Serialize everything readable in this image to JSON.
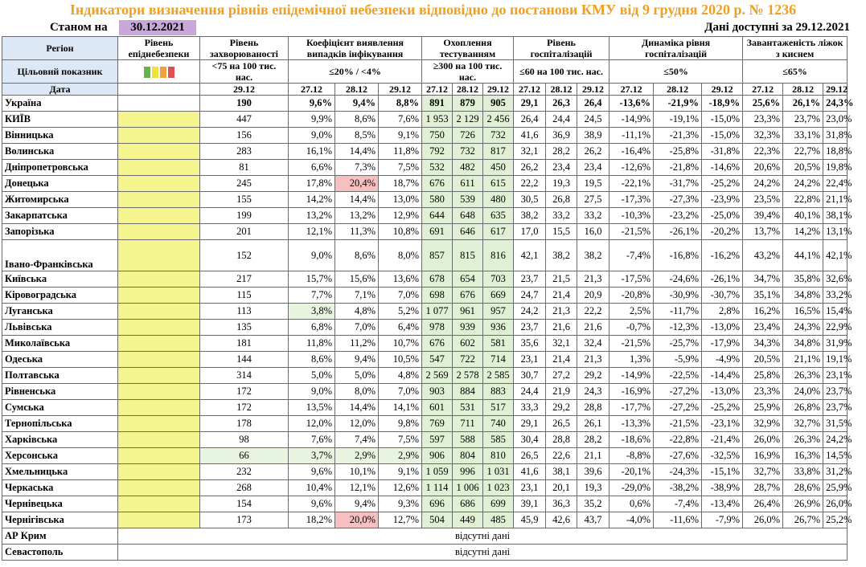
{
  "title": "Індикатори визначення рівнів епідемічної небезпеки відповідно до постанови КМУ від 9 грудня 2020 р. № 1236",
  "as_of_label": "Станом на",
  "as_of_date": "30.12.2021",
  "data_available": "Дані доступні за 29.12.2021",
  "header": {
    "region": "Регіон",
    "target": "Цільовий показник",
    "date": "Дата",
    "col_level": "Рівень епіднебезпеки",
    "col_incidence": "Рівень захворюваності",
    "col_detection": "Коефіцієнт виявлення випадків інфікування",
    "col_testing": "Охоплення тестуванням",
    "col_hosp": "Рівень госпіталізацій",
    "col_dynamics": "Динаміка рівня госпіталізацій",
    "col_beds": "Завантаженість ліжок з киснем",
    "t_incidence": "<75 на 100 тис. нас.",
    "t_detection": "≤20% / <4%",
    "t_testing": "≥300 на 100 тис. нас.",
    "t_hosp": "≤60 на 100 тис. нас.",
    "t_dynamics": "≤50%",
    "t_beds": "≤65%",
    "d_incidence": "29.12",
    "dates": [
      "27.12",
      "28.12",
      "29.12"
    ]
  },
  "swatch_colors": [
    "#6ab04c",
    "#f0e040",
    "#f0a040",
    "#e05050"
  ],
  "ukraine": {
    "name": "Україна",
    "inc": "190",
    "det": [
      "9,6%",
      "9,4%",
      "8,8%"
    ],
    "test": [
      "891",
      "879",
      "905"
    ],
    "hosp": [
      "29,1",
      "26,3",
      "26,4"
    ],
    "dyn": [
      "-13,6%",
      "-21,9%",
      "-18,9%"
    ],
    "beds": [
      "25,6%",
      "26,1%",
      "24,3%"
    ]
  },
  "rows": [
    {
      "name": "КИЇВ",
      "inc": "447",
      "det": [
        "9,9%",
        "8,6%",
        "7,6%"
      ],
      "test": [
        "1 953",
        "2 129",
        "2 456"
      ],
      "hosp": [
        "26,4",
        "24,4",
        "24,5"
      ],
      "dyn": [
        "-14,9%",
        "-19,1%",
        "-15,0%"
      ],
      "beds": [
        "23,3%",
        "23,7%",
        "23,0%"
      ]
    },
    {
      "name": "Вінницька",
      "inc": "156",
      "det": [
        "9,0%",
        "8,5%",
        "9,1%"
      ],
      "test": [
        "750",
        "726",
        "732"
      ],
      "hosp": [
        "41,6",
        "36,9",
        "38,9"
      ],
      "dyn": [
        "-11,1%",
        "-21,3%",
        "-15,0%"
      ],
      "beds": [
        "32,3%",
        "33,1%",
        "31,8%"
      ]
    },
    {
      "name": "Волинська",
      "inc": "283",
      "det": [
        "16,1%",
        "14,4%",
        "11,8%"
      ],
      "test": [
        "792",
        "732",
        "817"
      ],
      "hosp": [
        "32,1",
        "28,2",
        "26,2"
      ],
      "dyn": [
        "-16,4%",
        "-25,8%",
        "-31,8%"
      ],
      "beds": [
        "22,3%",
        "22,7%",
        "18,8%"
      ]
    },
    {
      "name": "Дніпропетровська",
      "inc": "81",
      "det": [
        "6,6%",
        "7,3%",
        "7,5%"
      ],
      "test": [
        "532",
        "482",
        "450"
      ],
      "hosp": [
        "26,2",
        "23,4",
        "23,4"
      ],
      "dyn": [
        "-12,6%",
        "-21,8%",
        "-14,6%"
      ],
      "beds": [
        "20,6%",
        "20,5%",
        "19,8%"
      ]
    },
    {
      "name": "Донецька",
      "inc": "245",
      "det": [
        "17,8%",
        "20,4%",
        "18,7%"
      ],
      "test": [
        "676",
        "611",
        "615"
      ],
      "hosp": [
        "22,2",
        "19,3",
        "19,5"
      ],
      "dyn": [
        "-22,1%",
        "-31,7%",
        "-25,2%"
      ],
      "beds": [
        "24,2%",
        "24,2%",
        "22,4%"
      ]
    },
    {
      "name": "Житомирська",
      "inc": "155",
      "det": [
        "14,2%",
        "14,4%",
        "13,0%"
      ],
      "test": [
        "580",
        "539",
        "480"
      ],
      "hosp": [
        "30,5",
        "26,8",
        "27,5"
      ],
      "dyn": [
        "-17,3%",
        "-27,3%",
        "-23,9%"
      ],
      "beds": [
        "23,5%",
        "22,8%",
        "21,1%"
      ]
    },
    {
      "name": "Закарпатська",
      "inc": "199",
      "det": [
        "13,2%",
        "13,2%",
        "12,9%"
      ],
      "test": [
        "644",
        "648",
        "635"
      ],
      "hosp": [
        "38,2",
        "33,2",
        "33,2"
      ],
      "dyn": [
        "-10,3%",
        "-23,2%",
        "-25,0%"
      ],
      "beds": [
        "39,4%",
        "40,1%",
        "38,1%"
      ]
    },
    {
      "name": "Запорізька",
      "inc": "201",
      "det": [
        "12,1%",
        "11,3%",
        "10,8%"
      ],
      "test": [
        "691",
        "646",
        "617"
      ],
      "hosp": [
        "17,0",
        "15,5",
        "16,0"
      ],
      "dyn": [
        "-21,5%",
        "-26,1%",
        "-20,2%"
      ],
      "beds": [
        "13,7%",
        "14,2%",
        "13,1%"
      ]
    },
    {
      "name": "Івано-Франківська",
      "inc": "152",
      "det": [
        "9,0%",
        "8,6%",
        "8,0%"
      ],
      "test": [
        "857",
        "815",
        "816"
      ],
      "hosp": [
        "42,1",
        "38,2",
        "38,2"
      ],
      "dyn": [
        "-7,4%",
        "-16,8%",
        "-16,2%"
      ],
      "beds": [
        "43,2%",
        "44,1%",
        "42,1%"
      ]
    },
    {
      "name": "Київська",
      "inc": "217",
      "det": [
        "15,7%",
        "15,6%",
        "13,6%"
      ],
      "test": [
        "678",
        "654",
        "703"
      ],
      "hosp": [
        "23,7",
        "21,5",
        "21,3"
      ],
      "dyn": [
        "-17,5%",
        "-24,6%",
        "-26,1%"
      ],
      "beds": [
        "34,7%",
        "35,8%",
        "32,6%"
      ]
    },
    {
      "name": "Кіровоградська",
      "inc": "115",
      "det": [
        "7,7%",
        "7,1%",
        "7,0%"
      ],
      "test": [
        "698",
        "676",
        "669"
      ],
      "hosp": [
        "24,7",
        "21,4",
        "20,9"
      ],
      "dyn": [
        "-20,8%",
        "-30,9%",
        "-30,7%"
      ],
      "beds": [
        "35,1%",
        "34,8%",
        "33,2%"
      ]
    },
    {
      "name": "Луганська",
      "inc": "113",
      "det": [
        "3,8%",
        "4,8%",
        "5,2%"
      ],
      "test": [
        "1 077",
        "961",
        "957"
      ],
      "hosp": [
        "24,2",
        "21,3",
        "22,2"
      ],
      "dyn": [
        "2,5%",
        "-11,7%",
        "2,8%"
      ],
      "beds": [
        "16,2%",
        "16,5%",
        "15,4%"
      ]
    },
    {
      "name": "Львівська",
      "inc": "135",
      "det": [
        "6,8%",
        "7,0%",
        "6,4%"
      ],
      "test": [
        "978",
        "939",
        "936"
      ],
      "hosp": [
        "23,7",
        "21,6",
        "21,6"
      ],
      "dyn": [
        "-0,7%",
        "-12,3%",
        "-13,0%"
      ],
      "beds": [
        "23,4%",
        "24,3%",
        "22,9%"
      ]
    },
    {
      "name": "Миколаївська",
      "inc": "181",
      "det": [
        "11,8%",
        "11,2%",
        "10,7%"
      ],
      "test": [
        "676",
        "602",
        "581"
      ],
      "hosp": [
        "35,6",
        "32,1",
        "32,4"
      ],
      "dyn": [
        "-21,5%",
        "-25,7%",
        "-17,9%"
      ],
      "beds": [
        "34,3%",
        "34,8%",
        "31,9%"
      ]
    },
    {
      "name": "Одеська",
      "inc": "144",
      "det": [
        "8,6%",
        "9,4%",
        "10,5%"
      ],
      "test": [
        "547",
        "722",
        "714"
      ],
      "hosp": [
        "23,1",
        "21,4",
        "21,3"
      ],
      "dyn": [
        "1,3%",
        "-5,9%",
        "-4,9%"
      ],
      "beds": [
        "20,5%",
        "21,1%",
        "19,1%"
      ]
    },
    {
      "name": "Полтавська",
      "inc": "314",
      "det": [
        "5,0%",
        "5,0%",
        "4,8%"
      ],
      "test": [
        "2 569",
        "2 578",
        "2 585"
      ],
      "hosp": [
        "30,7",
        "27,2",
        "29,2"
      ],
      "dyn": [
        "-14,9%",
        "-22,5%",
        "-14,4%"
      ],
      "beds": [
        "25,8%",
        "26,3%",
        "23,1%"
      ]
    },
    {
      "name": "Рівненська",
      "inc": "172",
      "det": [
        "9,0%",
        "8,0%",
        "7,0%"
      ],
      "test": [
        "903",
        "884",
        "883"
      ],
      "hosp": [
        "24,4",
        "21,9",
        "24,3"
      ],
      "dyn": [
        "-16,9%",
        "-27,2%",
        "-13,0%"
      ],
      "beds": [
        "23,3%",
        "24,0%",
        "23,7%"
      ]
    },
    {
      "name": "Сумська",
      "inc": "172",
      "det": [
        "13,5%",
        "14,4%",
        "14,1%"
      ],
      "test": [
        "601",
        "531",
        "517"
      ],
      "hosp": [
        "33,3",
        "29,2",
        "28,8"
      ],
      "dyn": [
        "-17,7%",
        "-27,2%",
        "-25,2%"
      ],
      "beds": [
        "25,9%",
        "26,8%",
        "23,7%"
      ]
    },
    {
      "name": "Тернопільська",
      "inc": "178",
      "det": [
        "12,0%",
        "12,0%",
        "9,8%"
      ],
      "test": [
        "769",
        "711",
        "740"
      ],
      "hosp": [
        "29,1",
        "26,5",
        "26,1"
      ],
      "dyn": [
        "-13,3%",
        "-21,5%",
        "-23,1%"
      ],
      "beds": [
        "32,9%",
        "32,7%",
        "31,5%"
      ]
    },
    {
      "name": "Харківська",
      "inc": "98",
      "det": [
        "7,6%",
        "7,4%",
        "7,5%"
      ],
      "test": [
        "597",
        "588",
        "585"
      ],
      "hosp": [
        "30,4",
        "28,8",
        "28,2"
      ],
      "dyn": [
        "-18,6%",
        "-22,8%",
        "-21,4%"
      ],
      "beds": [
        "26,0%",
        "26,3%",
        "24,2%"
      ]
    },
    {
      "name": "Херсонська",
      "inc": "66",
      "det": [
        "3,7%",
        "2,9%",
        "2,9%"
      ],
      "test": [
        "906",
        "804",
        "810"
      ],
      "hosp": [
        "26,5",
        "22,6",
        "21,1"
      ],
      "dyn": [
        "-8,8%",
        "-27,6%",
        "-32,5%"
      ],
      "beds": [
        "16,9%",
        "16,3%",
        "14,5%"
      ]
    },
    {
      "name": "Хмельницька",
      "inc": "232",
      "det": [
        "9,6%",
        "10,1%",
        "9,1%"
      ],
      "test": [
        "1 059",
        "996",
        "1 031"
      ],
      "hosp": [
        "41,6",
        "38,1",
        "39,6"
      ],
      "dyn": [
        "-20,1%",
        "-24,3%",
        "-15,1%"
      ],
      "beds": [
        "32,7%",
        "33,8%",
        "31,2%"
      ]
    },
    {
      "name": "Черкаська",
      "inc": "268",
      "det": [
        "10,4%",
        "12,1%",
        "12,6%"
      ],
      "test": [
        "1 114",
        "1 006",
        "1 023"
      ],
      "hosp": [
        "23,1",
        "20,1",
        "19,3"
      ],
      "dyn": [
        "-29,0%",
        "-38,2%",
        "-38,9%"
      ],
      "beds": [
        "28,7%",
        "28,6%",
        "25,9%"
      ]
    },
    {
      "name": "Чернівецька",
      "inc": "154",
      "det": [
        "9,6%",
        "9,4%",
        "9,3%"
      ],
      "test": [
        "696",
        "686",
        "699"
      ],
      "hosp": [
        "39,1",
        "36,3",
        "35,2"
      ],
      "dyn": [
        "0,6%",
        "-7,4%",
        "-13,4%"
      ],
      "beds": [
        "26,4%",
        "26,9%",
        "26,0%"
      ]
    },
    {
      "name": "Чернігівська",
      "inc": "173",
      "det": [
        "18,2%",
        "20,0%",
        "12,7%"
      ],
      "test": [
        "504",
        "449",
        "485"
      ],
      "hosp": [
        "45,9",
        "42,6",
        "43,7"
      ],
      "dyn": [
        "-4,0%",
        "-11,6%",
        "-7,9%"
      ],
      "beds": [
        "26,0%",
        "26,7%",
        "25,2%"
      ]
    }
  ],
  "missing_rows": [
    {
      "name": "АР Крим",
      "note": "відсутні дані"
    },
    {
      "name": "Севастополь",
      "note": "відсутні дані"
    }
  ]
}
